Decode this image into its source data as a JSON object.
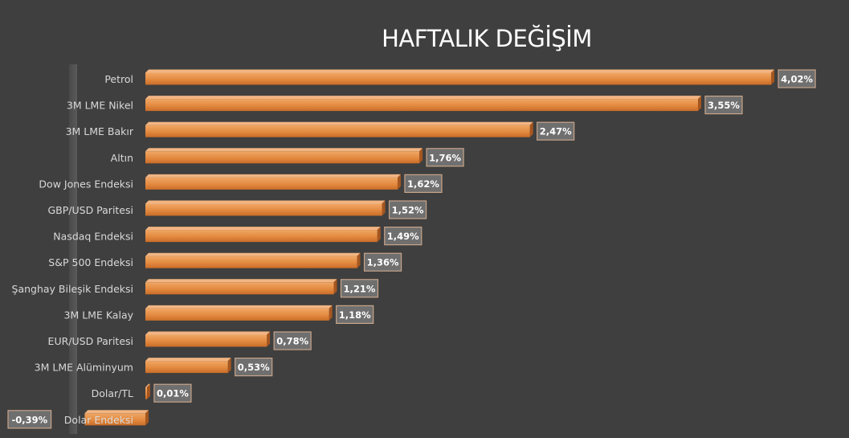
{
  "chart_data": {
    "type": "bar",
    "orientation": "horizontal",
    "title": "HAFTALIK DEĞİŞİM",
    "categories": [
      "Petrol",
      "3M LME Nikel",
      "3M LME Bakır",
      "Altın",
      "Dow Jones Endeksi",
      "GBP/USD Paritesi",
      "Nasdaq Endeksi",
      "S&P 500 Endeksi",
      "Şanghay Bileşik Endeksi",
      "3M LME Kalay",
      "EUR/USD Paritesi",
      "3M LME Alüminyum",
      "Dolar/TL",
      "Dolar Endeksi"
    ],
    "values": [
      4.02,
      3.55,
      2.47,
      1.76,
      1.62,
      1.52,
      1.49,
      1.36,
      1.21,
      1.18,
      0.78,
      0.53,
      0.01,
      -0.39
    ],
    "value_labels": [
      "4,02%",
      "3,55%",
      "2,47%",
      "1,76%",
      "1,62%",
      "1,52%",
      "1,49%",
      "1,36%",
      "1,21%",
      "1,18%",
      "0,78%",
      "0,53%",
      "0,01%",
      "-0,39%"
    ],
    "xlabel": "",
    "ylabel": "",
    "grid": false,
    "legend": "none",
    "colors": {
      "background": "#3f3f3f",
      "bar_fill": "#e5924d",
      "bar_top": "#f2b582",
      "bar_side": "#a5561f",
      "label_box": "#6f6f6f",
      "label_border": "#c9a58a",
      "label_text": "#ffffff",
      "axis_text": "#d9d9d9",
      "title_text": "#ffffff",
      "axis_wall": "#595959"
    }
  }
}
